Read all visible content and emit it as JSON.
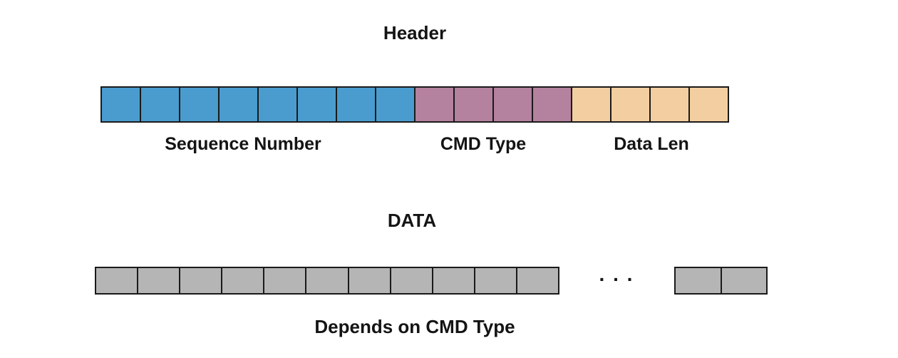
{
  "page": {
    "background": "#ffffff",
    "border_color": "#1a1a1a",
    "text_color": "#141414"
  },
  "header_section": {
    "title": "Header",
    "segments": [
      {
        "id": "sequence-number",
        "label": "Sequence Number",
        "cells": 8,
        "color": "#4A9CCE"
      },
      {
        "id": "cmd-type",
        "label": "CMD Type",
        "cells": 4,
        "color": "#B4819E"
      },
      {
        "id": "data-len",
        "label": "Data Len",
        "cells": 4,
        "color": "#F3CEA0"
      }
    ]
  },
  "data_section": {
    "title": "DATA",
    "caption": "Depends on CMD Type",
    "ellipsis": ". . .",
    "main_block": {
      "id": "data-bytes",
      "cells": 11,
      "color": "#B5B5B5"
    },
    "tail_block": {
      "id": "data-bytes-tail",
      "cells": 2,
      "color": "#B5B5B5"
    }
  }
}
